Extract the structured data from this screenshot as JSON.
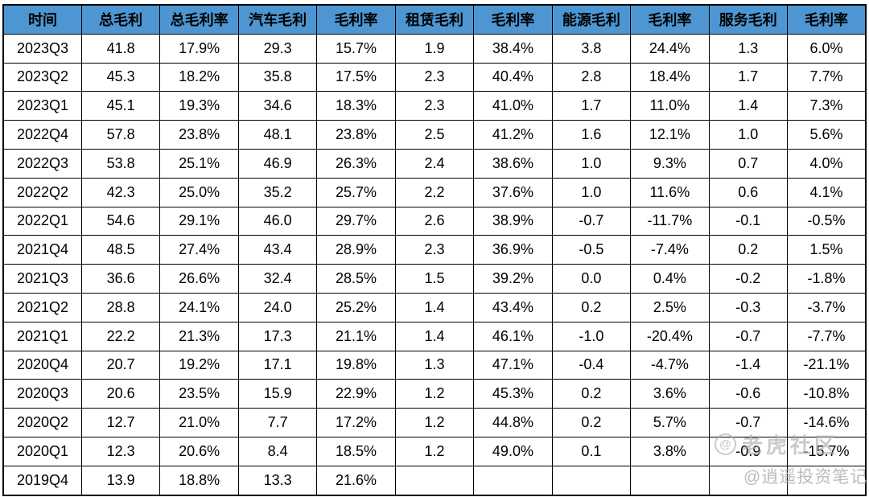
{
  "chart_data": {
    "type": "table",
    "columns": [
      "时间",
      "总毛利",
      "总毛利率",
      "汽车毛利",
      "毛利率",
      "租赁毛利",
      "毛利率",
      "能源毛利",
      "毛利率",
      "服务毛利",
      "毛利率"
    ],
    "rows": [
      [
        "2023Q3",
        "41.8",
        "17.9%",
        "29.3",
        "15.7%",
        "1.9",
        "38.4%",
        "3.8",
        "24.4%",
        "1.3",
        "6.0%"
      ],
      [
        "2023Q2",
        "45.3",
        "18.2%",
        "35.8",
        "17.5%",
        "2.3",
        "40.4%",
        "2.8",
        "18.4%",
        "1.7",
        "7.7%"
      ],
      [
        "2023Q1",
        "45.1",
        "19.3%",
        "34.6",
        "18.3%",
        "2.3",
        "41.0%",
        "1.7",
        "11.0%",
        "1.4",
        "7.3%"
      ],
      [
        "2022Q4",
        "57.8",
        "23.8%",
        "48.1",
        "23.8%",
        "2.5",
        "41.2%",
        "1.6",
        "12.1%",
        "1.0",
        "5.6%"
      ],
      [
        "2022Q3",
        "53.8",
        "25.1%",
        "46.9",
        "26.3%",
        "2.4",
        "38.6%",
        "1.0",
        "9.3%",
        "0.7",
        "4.0%"
      ],
      [
        "2022Q2",
        "42.3",
        "25.0%",
        "35.2",
        "25.7%",
        "2.2",
        "37.6%",
        "1.0",
        "11.6%",
        "0.6",
        "4.1%"
      ],
      [
        "2022Q1",
        "54.6",
        "29.1%",
        "46.0",
        "29.7%",
        "2.6",
        "38.9%",
        "-0.7",
        "-11.7%",
        "-0.1",
        "-0.5%"
      ],
      [
        "2021Q4",
        "48.5",
        "27.4%",
        "43.4",
        "28.9%",
        "2.3",
        "36.9%",
        "-0.5",
        "-7.4%",
        "0.2",
        "1.5%"
      ],
      [
        "2021Q3",
        "36.6",
        "26.6%",
        "32.4",
        "28.5%",
        "1.5",
        "39.2%",
        "0.0",
        "0.4%",
        "-0.2",
        "-1.8%"
      ],
      [
        "2021Q2",
        "28.8",
        "24.1%",
        "24.0",
        "25.2%",
        "1.4",
        "43.4%",
        "0.2",
        "2.5%",
        "-0.3",
        "-3.7%"
      ],
      [
        "2021Q1",
        "22.2",
        "21.3%",
        "17.3",
        "21.1%",
        "1.4",
        "46.1%",
        "-1.0",
        "-20.4%",
        "-0.7",
        "-7.7%"
      ],
      [
        "2020Q4",
        "20.7",
        "19.2%",
        "17.1",
        "19.8%",
        "1.3",
        "47.1%",
        "-0.4",
        "-4.7%",
        "-1.4",
        "-21.1%"
      ],
      [
        "2020Q3",
        "20.6",
        "23.5%",
        "15.9",
        "22.9%",
        "1.2",
        "45.3%",
        "0.2",
        "3.6%",
        "-0.6",
        "-10.8%"
      ],
      [
        "2020Q2",
        "12.7",
        "21.0%",
        "7.7",
        "17.2%",
        "1.2",
        "44.8%",
        "0.2",
        "5.7%",
        "-0.7",
        "-14.6%"
      ],
      [
        "2020Q1",
        "12.3",
        "20.6%",
        "8.4",
        "18.5%",
        "1.2",
        "49.0%",
        "0.1",
        "3.8%",
        "-0.9",
        "-15.7%"
      ],
      [
        "2019Q4",
        "13.9",
        "18.8%",
        "13.3",
        "21.6%",
        "",
        "",
        "",
        "",
        "",
        ""
      ]
    ]
  },
  "watermark": {
    "logo_glyph": "@",
    "community": "老虎社区",
    "author": "@逍遥投资笔记"
  },
  "colors": {
    "header_bg": "#4D96D2",
    "header_text": "#000000",
    "cell_text": "#000000",
    "border": "#000000",
    "watermark": "#ABABAB"
  }
}
